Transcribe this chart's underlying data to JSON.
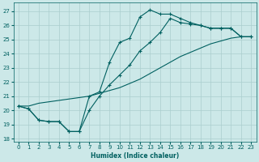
{
  "xlabel": "Humidex (Indice chaleur)",
  "bg_color": "#cce8e8",
  "line_color": "#006060",
  "grid_color": "#aacece",
  "xlim": [
    -0.5,
    23.5
  ],
  "ylim": [
    17.8,
    27.6
  ],
  "yticks": [
    18,
    19,
    20,
    21,
    22,
    23,
    24,
    25,
    26,
    27
  ],
  "xticks": [
    0,
    1,
    2,
    3,
    4,
    5,
    6,
    7,
    8,
    9,
    10,
    11,
    12,
    13,
    14,
    15,
    16,
    17,
    18,
    19,
    20,
    21,
    22,
    23
  ],
  "series1_x": [
    0,
    1,
    2,
    3,
    4,
    5,
    6,
    7,
    8,
    9,
    10,
    11,
    12,
    13,
    14,
    15,
    16,
    17,
    18,
    19,
    20,
    21,
    22,
    23
  ],
  "series1_y": [
    20.3,
    20.1,
    19.3,
    19.2,
    19.2,
    18.5,
    18.5,
    21.0,
    21.3,
    23.4,
    24.8,
    25.1,
    26.6,
    27.1,
    26.8,
    26.8,
    26.5,
    26.2,
    26.0,
    25.8,
    25.8,
    25.8,
    25.2,
    25.2
  ],
  "series2_x": [
    0,
    1,
    2,
    3,
    4,
    5,
    6,
    7,
    8,
    9,
    10,
    11,
    12,
    13,
    14,
    15,
    16,
    17,
    18,
    19,
    20,
    21,
    22,
    23
  ],
  "series2_y": [
    20.3,
    20.1,
    19.3,
    19.2,
    19.2,
    18.5,
    18.5,
    20.0,
    21.0,
    21.8,
    22.5,
    23.2,
    24.2,
    24.8,
    25.5,
    26.5,
    26.2,
    26.1,
    26.0,
    25.8,
    25.8,
    25.8,
    25.2,
    25.2
  ],
  "series3_x": [
    0,
    1,
    2,
    3,
    4,
    5,
    6,
    7,
    8,
    9,
    10,
    11,
    12,
    13,
    14,
    15,
    16,
    17,
    18,
    19,
    20,
    21,
    22,
    23
  ],
  "series3_y": [
    20.3,
    20.3,
    20.5,
    20.6,
    20.7,
    20.8,
    20.9,
    21.0,
    21.2,
    21.4,
    21.6,
    21.9,
    22.2,
    22.6,
    23.0,
    23.4,
    23.8,
    24.1,
    24.4,
    24.7,
    24.9,
    25.1,
    25.2,
    25.2
  ]
}
